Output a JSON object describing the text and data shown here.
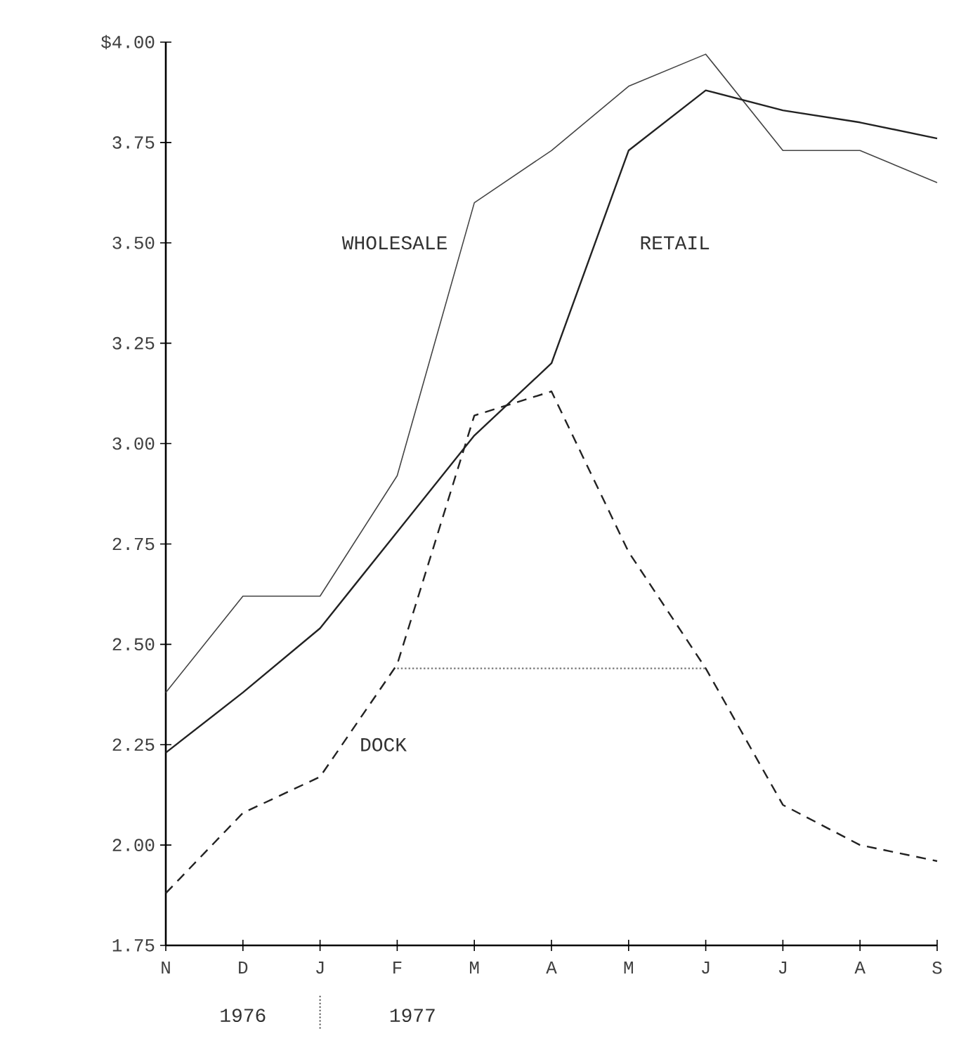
{
  "chart_data": {
    "type": "line",
    "categories": [
      "N",
      "D",
      "J",
      "F",
      "M",
      "A",
      "M",
      "J",
      "J",
      "A",
      "S"
    ],
    "series": [
      {
        "name": "WHOLESALE",
        "color": "#444444",
        "line_style": "solid",
        "values": [
          2.38,
          2.62,
          2.62,
          2.92,
          3.6,
          3.73,
          3.89,
          3.97,
          3.73,
          3.73,
          3.65
        ]
      },
      {
        "name": "RETAIL",
        "color": "#222222",
        "line_style": "solid",
        "values": [
          2.23,
          2.38,
          2.54,
          2.78,
          3.02,
          3.2,
          3.73,
          3.88,
          3.83,
          3.8,
          3.76
        ]
      },
      {
        "name": "DOCK",
        "color": "#222222",
        "line_style": "dashed",
        "values": [
          1.88,
          2.08,
          2.17,
          2.45,
          3.07,
          3.13,
          2.73,
          2.44,
          2.1,
          2.0,
          1.96
        ]
      },
      {
        "color": "#777777",
        "line_style": "dotted",
        "values": [
          null,
          null,
          null,
          2.44,
          2.44,
          2.44,
          2.44,
          2.44,
          null,
          null,
          null
        ]
      }
    ],
    "ylim": [
      1.75,
      4.0
    ],
    "yticks": [
      {
        "value": 4.0,
        "label": "$4.00"
      },
      {
        "value": 3.75,
        "label": "3.75"
      },
      {
        "value": 3.5,
        "label": "3.50"
      },
      {
        "value": 3.25,
        "label": "3.25"
      },
      {
        "value": 3.0,
        "label": "3.00"
      },
      {
        "value": 2.75,
        "label": "2.75"
      },
      {
        "value": 2.5,
        "label": "2.50"
      },
      {
        "value": 2.25,
        "label": "2.25"
      },
      {
        "value": 2.0,
        "label": "2.00"
      },
      {
        "value": 1.75,
        "label": "1.75"
      }
    ],
    "annotations": [
      "1976",
      "1977"
    ],
    "grid": false,
    "legend": false,
    "marker": "none"
  }
}
